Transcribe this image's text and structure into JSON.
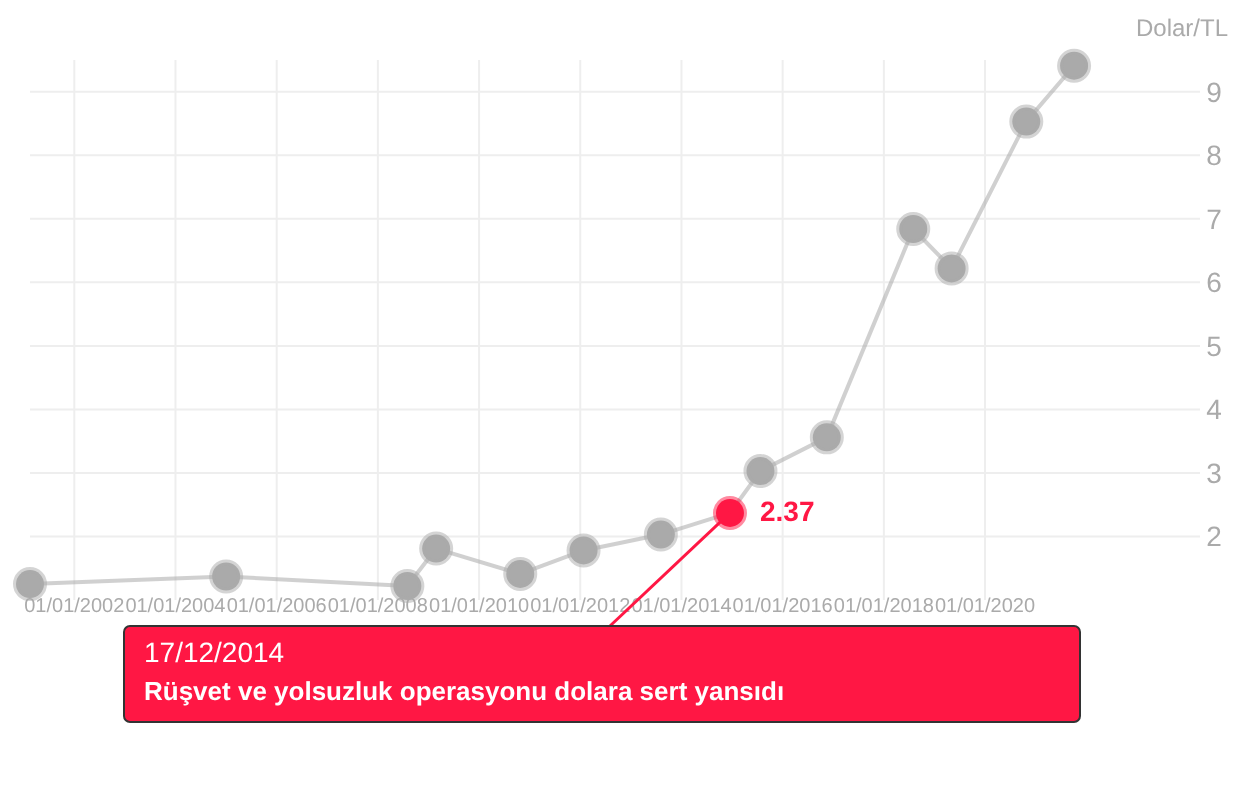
{
  "chart_data": {
    "type": "line",
    "ylabel": "Dolar/TL",
    "x": [
      "2001-02-15",
      "2005-01-01",
      "2008-08-01",
      "2009-02-25",
      "2010-10-25",
      "2012-01-25",
      "2013-08-05",
      "2014-12-17",
      "2015-07-25",
      "2016-11-15",
      "2018-08-01",
      "2019-05-05",
      "2020-10-25",
      "2021-10-05"
    ],
    "series": [
      {
        "color": "#aaaaaa",
        "colors": [
          "#aaaaaa",
          "#aaaaaa",
          "#aaaaaa",
          "#aaaaaa",
          "#aaaaaa",
          "#aaaaaa",
          "#aaaaaa",
          "#ff1744",
          "#aaaaaa",
          "#aaaaaa",
          "#aaaaaa",
          "#aaaaaa",
          "#aaaaaa",
          "#aaaaaa"
        ],
        "values": [
          1.25,
          1.37,
          1.22,
          1.81,
          1.41,
          1.78,
          2.03,
          2.37,
          3.03,
          3.56,
          6.84,
          6.22,
          8.53,
          9.41
        ],
        "value_labels": [
          null,
          null,
          null,
          null,
          null,
          null,
          null,
          "2.37",
          null,
          null,
          null,
          null,
          null,
          null
        ]
      }
    ],
    "xlim": [
      "2001-02-15",
      "2024-04-01"
    ],
    "xticks": [
      {
        "value": "2002-01-01",
        "label": "01/01/2002"
      },
      {
        "value": "2004-01-01",
        "label": "01/01/2004"
      },
      {
        "value": "2006-01-01",
        "label": "01/01/2006"
      },
      {
        "value": "2008-01-01",
        "label": "01/01/2008"
      },
      {
        "value": "2010-01-01",
        "label": "01/01/2010"
      },
      {
        "value": "2012-01-01",
        "label": "01/01/2012"
      },
      {
        "value": "2014-01-01",
        "label": "01/01/2014"
      },
      {
        "value": "2016-01-01",
        "label": "01/01/2016"
      },
      {
        "value": "2018-01-01",
        "label": "01/01/2018"
      },
      {
        "value": "2020-01-01",
        "label": "01/01/2020"
      }
    ],
    "ylim": [
      1,
      9.5
    ],
    "yticks": [
      2,
      3,
      4,
      5,
      6,
      7,
      8,
      9
    ],
    "grid": true,
    "marker": "circle",
    "line_style": "solid",
    "annotations": [
      {
        "text": "17/12/2014\nRüşvet ve yolsuzluk operasyonu dolara sert yansıdı",
        "x": "2014-12-17",
        "y": 2.37
      }
    ]
  }
}
